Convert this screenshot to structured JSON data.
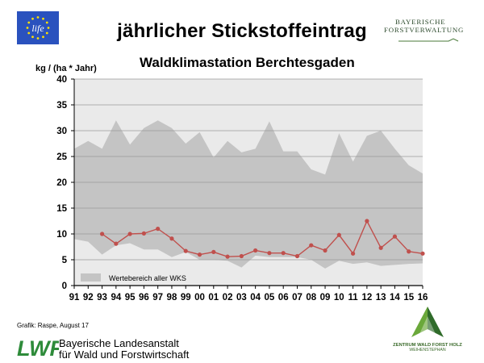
{
  "header": {
    "eu_logo_text": "life",
    "title": "jährlicher Stickstoffeintrag",
    "org_line1": "BAYERISCHE",
    "org_line2": "FORSTVERWALTUNG"
  },
  "colors": {
    "range_fill": "#c4c4c4",
    "plot_background": "#eaeaea",
    "series_line": "#c0504d",
    "eu_blue": "#2a52be",
    "eu_star": "#ffe100",
    "lwf_green": "#2e8b3a"
  },
  "chart_data": {
    "type": "area",
    "title": "Waldklimastation Berchtesgaden",
    "ylabel": "kg / (ha * Jahr)",
    "xlabel": "",
    "ylim": [
      0,
      40
    ],
    "yticks": [
      "0",
      "5",
      "10",
      "15",
      "20",
      "25",
      "30",
      "35",
      "40"
    ],
    "grid": true,
    "legend_position": "bottom-left",
    "categories": [
      "91",
      "92",
      "93",
      "94",
      "95",
      "96",
      "97",
      "98",
      "99",
      "00",
      "01",
      "02",
      "03",
      "04",
      "05",
      "06",
      "07",
      "08",
      "09",
      "10",
      "11",
      "12",
      "13",
      "14",
      "15",
      "16"
    ],
    "series": [
      {
        "name": "Wertebereich aller WKS",
        "kind": "range",
        "upper": [
          26.5,
          28.0,
          26.5,
          32.0,
          27.3,
          30.5,
          32.0,
          30.5,
          27.5,
          29.7,
          24.8,
          28.0,
          25.8,
          26.5,
          31.8,
          26.0,
          26.0,
          22.5,
          21.5,
          29.5,
          24.0,
          29.0,
          30.0,
          26.5,
          23.3,
          21.7
        ],
        "lower": [
          9.0,
          8.5,
          6.0,
          7.8,
          8.2,
          7.0,
          7.0,
          5.5,
          6.5,
          5.0,
          5.0,
          4.8,
          3.5,
          5.8,
          5.5,
          5.5,
          5.5,
          5.0,
          3.3,
          4.8,
          4.2,
          4.5,
          3.8,
          4.0,
          4.2,
          4.3
        ]
      },
      {
        "kind": "line",
        "values": [
          null,
          null,
          10.0,
          8.1,
          10.0,
          10.1,
          11.0,
          9.1,
          6.7,
          6.0,
          6.5,
          5.6,
          5.7,
          6.8,
          6.3,
          6.3,
          5.7,
          7.8,
          6.8,
          9.8,
          6.2,
          12.5,
          7.3,
          9.5,
          6.6,
          6.2
        ]
      }
    ]
  },
  "footer": {
    "source": "Grafik: Raspe, August 17",
    "lwf_abbr": "LWF",
    "lwf_line1": "Bayerische Landesanstalt",
    "lwf_line2": "für Wald und Forstwirtschaft",
    "zentrum_line1": "ZENTRUM WALD FORST HOLZ",
    "zentrum_line2": "WEIHENSTEPHAN"
  }
}
